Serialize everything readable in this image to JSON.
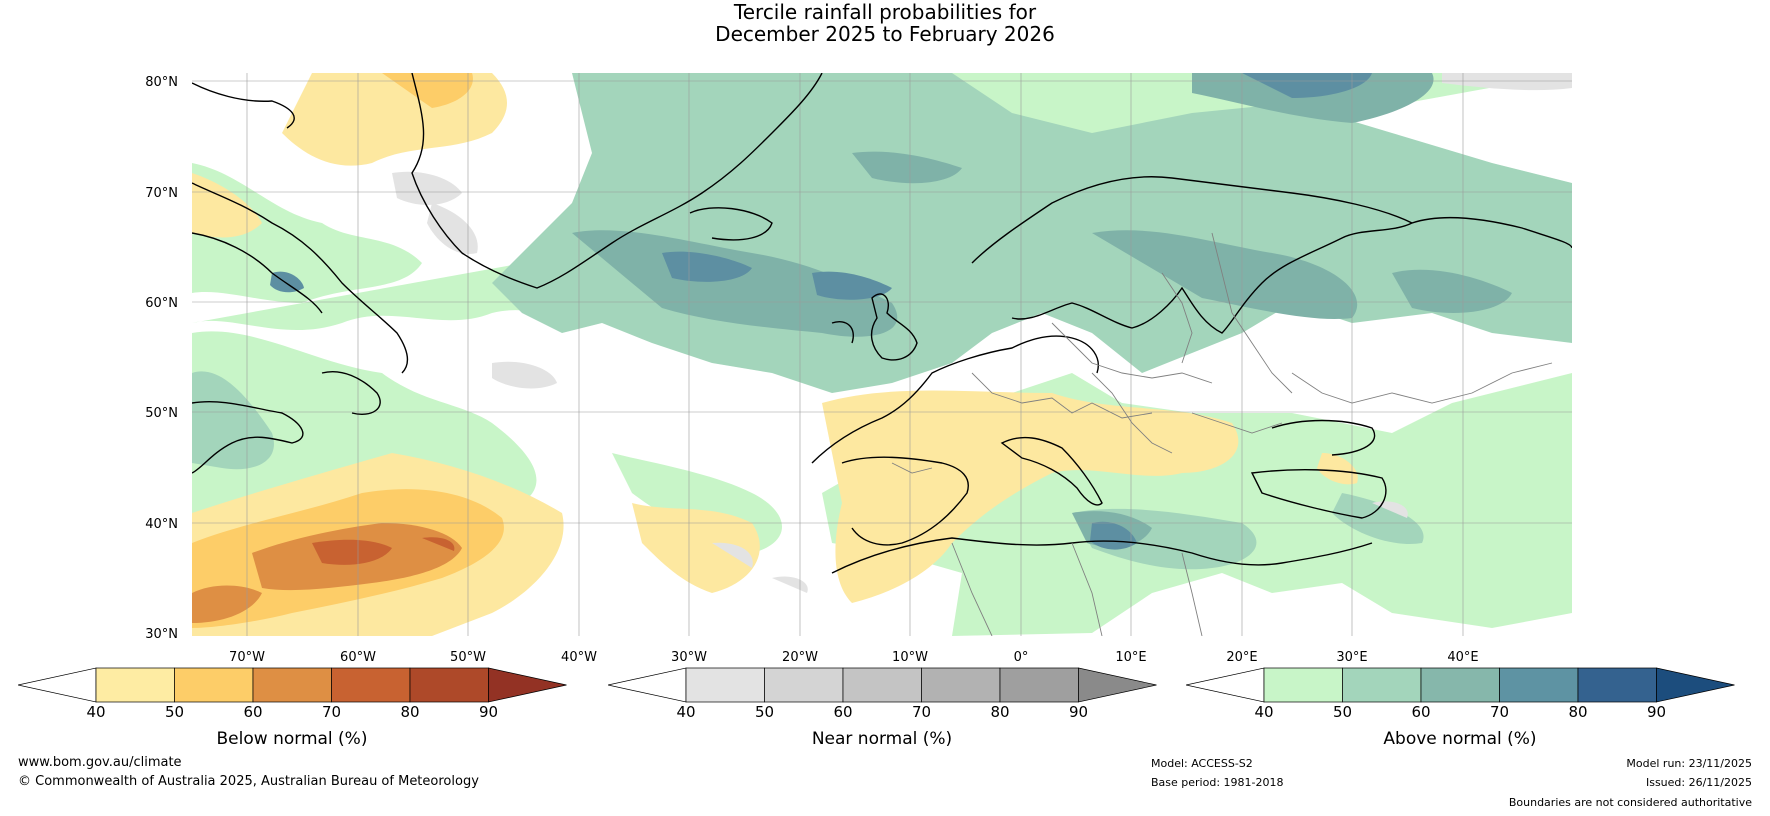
{
  "title": {
    "line1": "Tercile rainfall probabilities for",
    "line2": "December 2025 to February 2026"
  },
  "map": {
    "extent": {
      "lon": [
        -80,
        45
      ],
      "lat": [
        30,
        81
      ]
    },
    "lat_labels": [
      "80°N",
      "70°N",
      "60°N",
      "50°N",
      "40°N",
      "30°N"
    ],
    "lon_labels": [
      "70°W",
      "60°W",
      "50°W",
      "40°W",
      "30°W",
      "20°W",
      "10°W",
      "0°",
      "10°E",
      "20°E",
      "30°E",
      "40°E"
    ],
    "colors": {
      "ocean_bg": "#ffffff",
      "above50": "#c8f5c8",
      "above60": "#a3d5bb",
      "above70": "#7fb2a8",
      "above80": "#5d8fa2",
      "below50": "#fde8a0",
      "near50": "#e3e3e3",
      "land_outline": "#000000",
      "border": "#808080"
    }
  },
  "colorbars": [
    {
      "label": "Below normal (%)",
      "ticks": [
        "40",
        "50",
        "60",
        "70",
        "80",
        "90"
      ],
      "colors": [
        "#ffffff",
        "#feeca3",
        "#fdcd68",
        "#de8f44",
        "#c86231",
        "#ae4929",
        "#933224"
      ]
    },
    {
      "label": "Near normal (%)",
      "ticks": [
        "40",
        "50",
        "60",
        "70",
        "80",
        "90"
      ],
      "colors": [
        "#ffffff",
        "#e3e3e3",
        "#d4d4d4",
        "#c4c4c4",
        "#b2b2b2",
        "#9f9f9f",
        "#8a8a8a"
      ]
    },
    {
      "label": "Above normal (%)",
      "ticks": [
        "40",
        "50",
        "60",
        "70",
        "80",
        "90"
      ],
      "colors": [
        "#ffffff",
        "#c8f5c8",
        "#a3d5bb",
        "#86b7ab",
        "#5e93a3",
        "#34628f",
        "#1c4d7d"
      ]
    }
  ],
  "footer": {
    "website": "www.bom.gov.au/climate",
    "copyright": "© Commonwealth of Australia 2025, Australian Bureau of Meteorology",
    "model": "Model: ACCESS-S2",
    "base_period": "Base period: 1981-2018",
    "model_run": "Model run: 23/11/2025",
    "issued": "Issued: 26/11/2025",
    "disclaimer": "Boundaries are not considered authoritative"
  }
}
